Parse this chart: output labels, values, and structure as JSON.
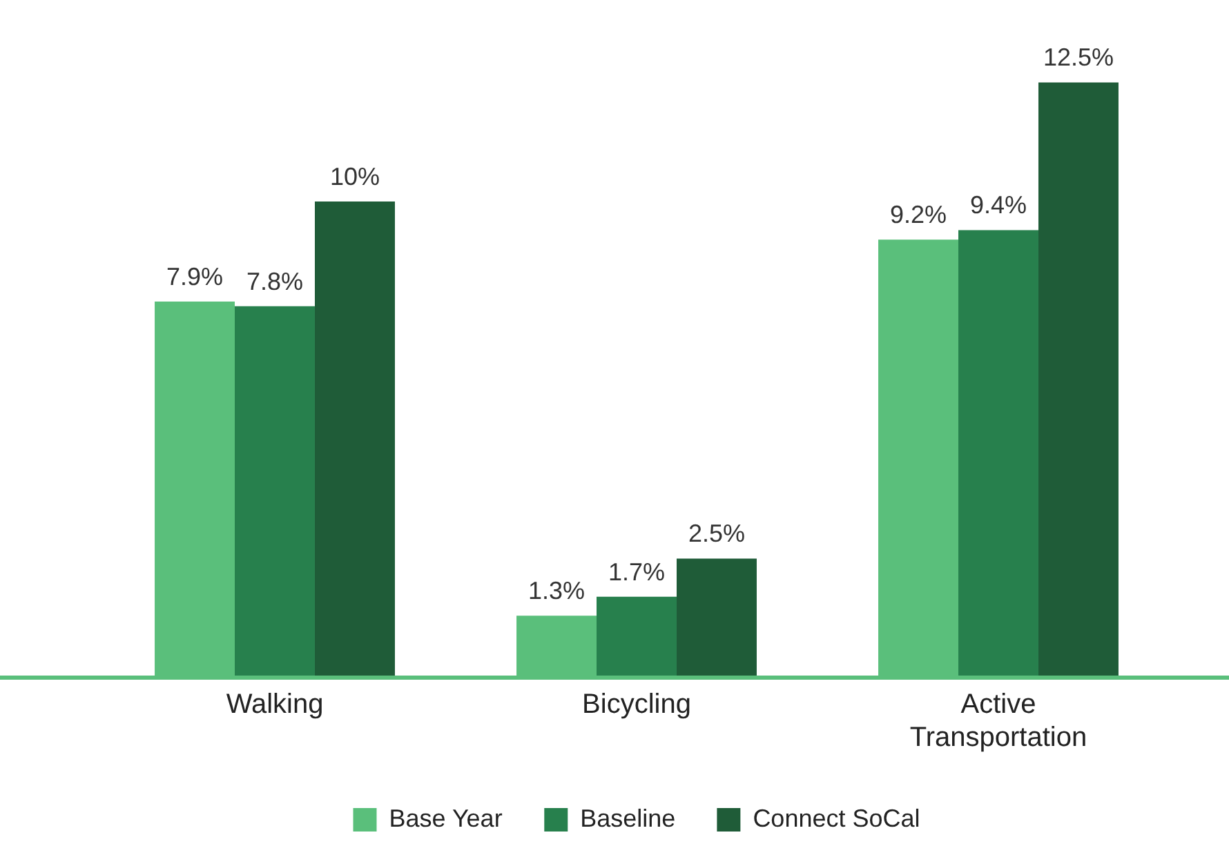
{
  "chart_data": {
    "type": "bar",
    "categories": [
      "Walking",
      "Bicycling",
      "Active Transportation"
    ],
    "series": [
      {
        "name": "Base Year",
        "color": "#5abf7b",
        "values": [
          7.9,
          1.3,
          9.2
        ],
        "value_labels": [
          "7.9%",
          "1.3%",
          "9.2%"
        ]
      },
      {
        "name": "Baseline",
        "color": "#27804d",
        "values": [
          7.8,
          1.7,
          9.4
        ],
        "value_labels": [
          "7.8%",
          "1.7%",
          "9.4%"
        ]
      },
      {
        "name": "Connect SoCal",
        "color": "#1f5c38",
        "values": [
          10,
          2.5,
          12.5
        ],
        "value_labels": [
          "10%",
          "2.5%",
          "12.5%"
        ]
      }
    ],
    "legend": "bottom",
    "grid": false,
    "tick_labels": "x"
  }
}
